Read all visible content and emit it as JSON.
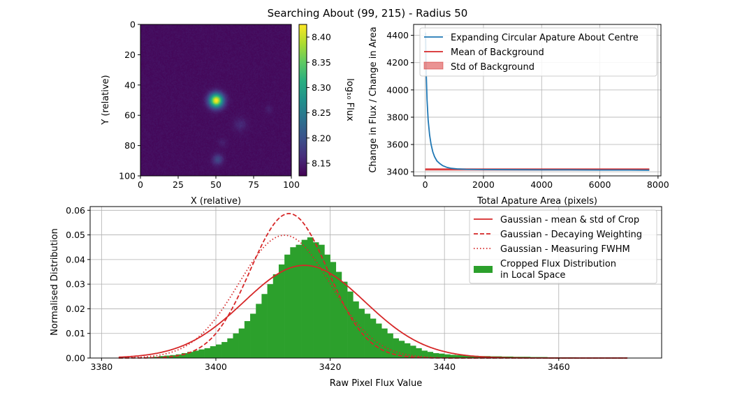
{
  "title": "Searching About (99, 215) - Radius 50",
  "chart_data": [
    {
      "type": "heatmap",
      "xlabel": "X (relative)",
      "ylabel": "Y (relative)",
      "xticks": [
        "0",
        "25",
        "50",
        "75",
        "100"
      ],
      "yticks": [
        "0",
        "20",
        "40",
        "60",
        "80",
        "100"
      ],
      "xlim": [
        0,
        100
      ],
      "ylim": [
        100,
        0
      ],
      "colormap": "viridis",
      "colorbar": {
        "label": "log₁₀ Flux",
        "ticks": [
          "8.15",
          "8.20",
          "8.25",
          "8.30",
          "8.35",
          "8.40"
        ],
        "range": [
          8.125,
          8.425
        ]
      },
      "background_value": 8.135,
      "sources": [
        {
          "x": 50,
          "y": 50,
          "peak": 8.425,
          "sigma": 3.2
        },
        {
          "x": 51,
          "y": 89,
          "peak": 8.19,
          "sigma": 2.4
        },
        {
          "x": 66,
          "y": 66,
          "peak": 8.16,
          "sigma": 3.0
        },
        {
          "x": 85,
          "y": 56,
          "peak": 8.15,
          "sigma": 1.8
        },
        {
          "x": 54,
          "y": 78,
          "peak": 8.15,
          "sigma": 2.0
        }
      ]
    },
    {
      "type": "line",
      "xlabel": "Total Apature Area (pixels)",
      "ylabel": "Change in Flux / Change in Area",
      "xticks": [
        "0",
        "2000",
        "4000",
        "6000",
        "8000"
      ],
      "yticks": [
        "3400",
        "3600",
        "3800",
        "4000",
        "4200",
        "4400"
      ],
      "xlim": [
        -400,
        8100
      ],
      "ylim": [
        3370,
        4480
      ],
      "grid": true,
      "legend_position": "top-right",
      "series": [
        {
          "name": "Expanding Circular Apature About Centre",
          "color": "#1f77b4",
          "x": [
            10,
            30,
            60,
            100,
            150,
            200,
            260,
            320,
            400,
            500,
            600,
            750,
            900,
            1100,
            1400,
            2000,
            3000,
            4000,
            5000,
            6000,
            7000,
            7700
          ],
          "y": [
            4420,
            4150,
            3930,
            3780,
            3670,
            3600,
            3545,
            3510,
            3480,
            3460,
            3445,
            3432,
            3425,
            3421,
            3418,
            3416,
            3415,
            3414,
            3414,
            3413,
            3413,
            3412
          ]
        },
        {
          "name": "Mean of Background",
          "color": "#d62728",
          "x": [
            0,
            7700
          ],
          "y": [
            3418,
            3418
          ]
        },
        {
          "name": "Std of Background",
          "color": "#d62728",
          "type": "band",
          "x": [
            0,
            7700
          ],
          "lower": [
            3408,
            3408
          ],
          "upper": [
            3426,
            3426
          ]
        }
      ]
    },
    {
      "type": "bar",
      "xlabel": "Raw Pixel Flux Value",
      "ylabel": "Normalised Distribution",
      "xticks": [
        "3380",
        "3400",
        "3420",
        "3440",
        "3460"
      ],
      "yticks": [
        "0.00",
        "0.01",
        "0.02",
        "0.03",
        "0.04",
        "0.05",
        "0.06"
      ],
      "xlim": [
        3378,
        3478
      ],
      "ylim": [
        0,
        0.0615
      ],
      "grid": true,
      "legend_position": "top-right",
      "histogram": {
        "name": "Cropped Flux Distribution\nin Local Space",
        "color": "#2ca02c",
        "bin_start": 3388,
        "bin_width": 1,
        "values": [
          0.0003,
          0.0005,
          0.0008,
          0.001,
          0.0012,
          0.0015,
          0.002,
          0.0025,
          0.003,
          0.0035,
          0.004,
          0.0048,
          0.0055,
          0.0065,
          0.008,
          0.01,
          0.012,
          0.015,
          0.018,
          0.022,
          0.026,
          0.03,
          0.034,
          0.038,
          0.042,
          0.045,
          0.046,
          0.048,
          0.049,
          0.047,
          0.046,
          0.042,
          0.039,
          0.035,
          0.031,
          0.027,
          0.023,
          0.02,
          0.018,
          0.016,
          0.014,
          0.012,
          0.01,
          0.008,
          0.007,
          0.006,
          0.005,
          0.004,
          0.003,
          0.0025,
          0.002,
          0.0018,
          0.0015,
          0.0013,
          0.0012,
          0.001,
          0.001,
          0.0009,
          0.0008,
          0.0008,
          0.0007,
          0.0007,
          0.0006,
          0.0006,
          0.0005,
          0.0005,
          0.0005,
          0.0004,
          0.0004,
          0.0004,
          0.0003,
          0.0003,
          0.0003,
          0.0003,
          0.0003,
          0.0002,
          0.0002,
          0.0002,
          0.0002,
          0.0002,
          0.0002,
          0.0002,
          0.0002,
          0.0002
        ]
      },
      "curves": [
        {
          "name": "Gaussian - mean & std of Crop",
          "color": "#d62728",
          "style": "solid",
          "mean": 3415.5,
          "sigma": 10.6,
          "x_range": [
            3383,
            3472
          ]
        },
        {
          "name": "Gaussian - Decaying Weighting",
          "color": "#d62728",
          "style": "dashed",
          "mean": 3412.8,
          "sigma": 6.8,
          "x_range": [
            3383,
            3472
          ]
        },
        {
          "name": "Gaussian - Measuring FWHM",
          "color": "#d62728",
          "style": "dotted",
          "mean": 3412.0,
          "sigma": 8.0,
          "x_range": [
            3383,
            3472
          ]
        }
      ]
    }
  ]
}
